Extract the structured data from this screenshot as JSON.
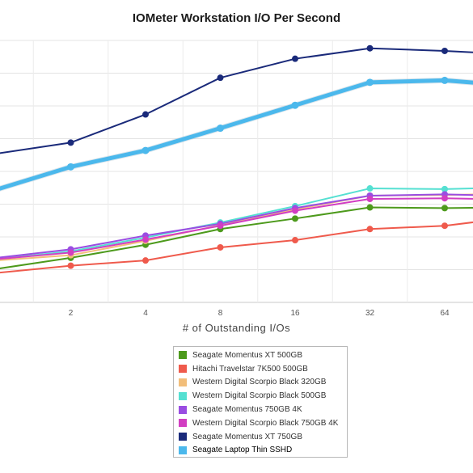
{
  "chart_data": {
    "type": "line",
    "title": "IOMeter Workstation I/O Per Second",
    "xlabel": "# of Outstanding I/Os",
    "ylabel": "",
    "x": [
      1,
      2,
      4,
      8,
      16,
      32,
      64,
      128
    ],
    "x_tick_labels": [
      "2",
      "4",
      "8",
      "16",
      "32",
      "64"
    ],
    "grid": true,
    "legend_position": "bottom",
    "series": [
      {
        "name": "Seagate Momentus XT 500GB",
        "color": "#4d9a1c",
        "values": [
          0.51,
          0.68,
          0.88,
          1.12,
          1.28,
          1.45,
          1.44,
          1.45
        ]
      },
      {
        "name": "Hitachi Travelstar 7K500 500GB",
        "color": "#ef5a4c",
        "values": [
          0.45,
          0.56,
          0.64,
          0.84,
          0.95,
          1.12,
          1.17,
          1.31
        ]
      },
      {
        "name": "Western Digital Scorpio Black 320GB",
        "color": "#f2be7a",
        "values": [
          0.64,
          0.72,
          0.94,
          1.18,
          1.42,
          1.63,
          1.64,
          1.66
        ]
      },
      {
        "name": "Western Digital Scorpio Black 500GB",
        "color": "#55e0d2",
        "values": [
          0.66,
          0.78,
          0.99,
          1.22,
          1.47,
          1.74,
          1.73,
          1.76
        ]
      },
      {
        "name": "Seagate Momentus 750GB 4K",
        "color": "#9a4de2",
        "values": [
          0.68,
          0.81,
          1.02,
          1.2,
          1.44,
          1.63,
          1.65,
          1.62
        ]
      },
      {
        "name": "Western Digital Scorpio Black 750GB 4K",
        "color": "#d23ec2",
        "values": [
          0.66,
          0.76,
          0.96,
          1.17,
          1.4,
          1.58,
          1.59,
          1.57
        ]
      },
      {
        "name": "Seagate Momentus XT 750GB",
        "color": "#1a2a7a",
        "values": [
          2.27,
          2.44,
          2.87,
          3.43,
          3.72,
          3.88,
          3.84,
          3.78
        ]
      },
      {
        "name": "Seagate Laptop Thin SSHD",
        "color": "#4bb8ec",
        "values": [
          1.72,
          2.07,
          2.32,
          2.66,
          3.01,
          3.36,
          3.39,
          3.3
        ]
      }
    ]
  }
}
